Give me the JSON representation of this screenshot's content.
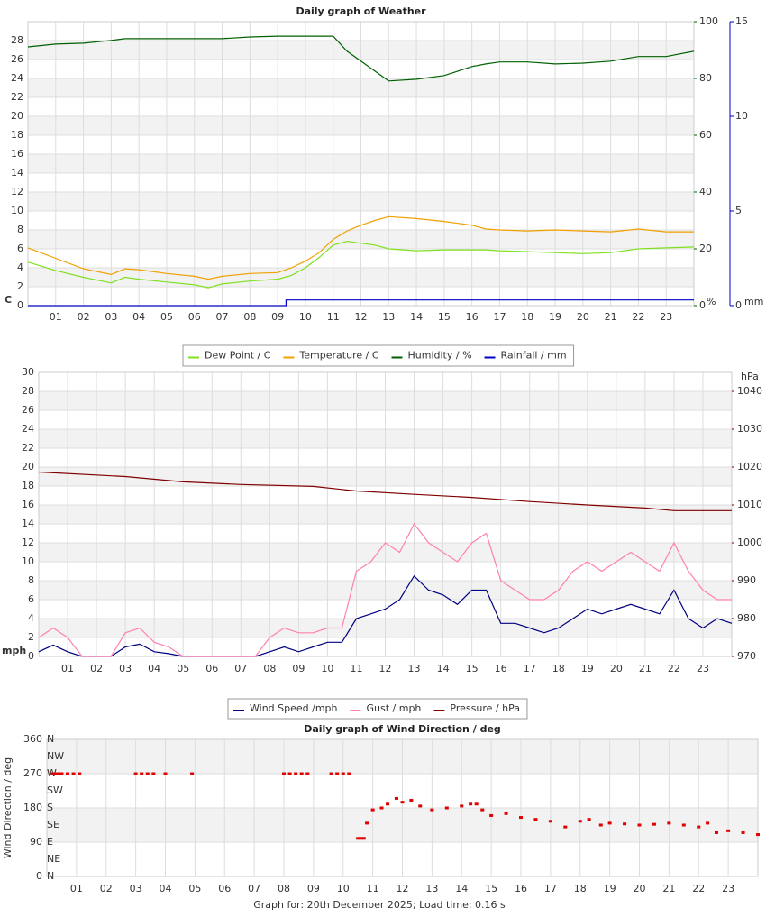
{
  "chart_data": [
    {
      "type": "line",
      "title": "Daily graph of Weather",
      "x": [
        0,
        1,
        2,
        3,
        3.5,
        4,
        5,
        6,
        6.5,
        7,
        8,
        9,
        9.5,
        10,
        10.5,
        11,
        11.5,
        12,
        12.5,
        13,
        14,
        15,
        16,
        16.5,
        17,
        18,
        19,
        20,
        21,
        22,
        23,
        24
      ],
      "xlim": [
        0,
        24
      ],
      "xticks": [
        {
          "value": 1,
          "label": "01"
        },
        {
          "value": 2,
          "label": "02"
        },
        {
          "value": 3,
          "label": "03"
        },
        {
          "value": 4,
          "label": "04"
        },
        {
          "value": 5,
          "label": "05"
        },
        {
          "value": 6,
          "label": "06"
        },
        {
          "value": 7,
          "label": "07"
        },
        {
          "value": 8,
          "label": "08"
        },
        {
          "value": 9,
          "label": "09"
        },
        {
          "value": 10,
          "label": "10"
        },
        {
          "value": 11,
          "label": "11"
        },
        {
          "value": 12,
          "label": "12"
        },
        {
          "value": 13,
          "label": "13"
        },
        {
          "value": 14,
          "label": "14"
        },
        {
          "value": 15,
          "label": "15"
        },
        {
          "value": 16,
          "label": "16"
        },
        {
          "value": 17,
          "label": "17"
        },
        {
          "value": 18,
          "label": "18"
        },
        {
          "value": 19,
          "label": "19"
        },
        {
          "value": 20,
          "label": "20"
        },
        {
          "value": 21,
          "label": "21"
        },
        {
          "value": 22,
          "label": "22"
        },
        {
          "value": 23,
          "label": "23"
        }
      ],
      "ylim": [
        0,
        30
      ],
      "yticks": [
        0,
        2,
        4,
        6,
        8,
        10,
        12,
        14,
        16,
        18,
        20,
        22,
        24,
        26,
        28
      ],
      "y_label": "C",
      "y_color": "#e8a000",
      "y2lim": [
        0,
        100
      ],
      "y2ticks": [
        0,
        20,
        40,
        60,
        80,
        100
      ],
      "y2_label": "%",
      "y2_color": "#006000",
      "y3lim": [
        0,
        15
      ],
      "y3ticks": [
        0,
        5,
        10,
        15
      ],
      "y3_label": "mm",
      "y3_color": "#0000c0",
      "grid": true,
      "series": [
        {
          "name": "Dew Point / C",
          "color": "#80e020",
          "values": [
            4.6,
            3.7,
            3.0,
            2.4,
            3.0,
            2.8,
            2.5,
            2.2,
            1.9,
            2.3,
            2.6,
            2.8,
            3.2,
            4.0,
            5.1,
            6.4,
            6.8,
            6.6,
            6.4,
            6.0,
            5.8,
            5.9,
            5.9,
            5.9,
            5.8,
            5.7,
            5.6,
            5.5,
            5.6,
            6.0,
            6.1,
            6.2
          ]
        },
        {
          "name": "Temperature / C",
          "color": "#f0a000",
          "values": [
            6.1,
            5.0,
            3.9,
            3.3,
            3.9,
            3.8,
            3.4,
            3.1,
            2.8,
            3.1,
            3.4,
            3.5,
            4.0,
            4.7,
            5.6,
            7.0,
            7.9,
            8.5,
            9.0,
            9.4,
            9.2,
            8.9,
            8.5,
            8.1,
            8.0,
            7.9,
            8.0,
            7.9,
            7.8,
            8.1,
            7.8,
            7.8
          ]
        },
        {
          "name": "Humidity / %",
          "color": "#006000",
          "axis": "y2",
          "values": [
            91.1,
            92.1,
            92.4,
            93.4,
            94,
            94,
            94,
            94,
            94,
            94,
            94.6,
            94.9,
            94.9,
            94.9,
            94.9,
            94.9,
            89.6,
            86.1,
            82.6,
            79.1,
            79.7,
            81,
            84.2,
            85.1,
            85.8,
            85.8,
            85.1,
            85.4,
            86.1,
            87.7,
            87.7,
            89.6
          ]
        },
        {
          "name": "Rainfall / mm",
          "color": "#0000c0",
          "axis": "y3",
          "x": [
            0,
            9.3,
            9.3,
            24
          ],
          "values": [
            0,
            0,
            0.3,
            0.3
          ]
        }
      ]
    },
    {
      "type": "line",
      "x": [
        0,
        0.5,
        1,
        1.5,
        2,
        2.5,
        3,
        3.5,
        4,
        4.5,
        5,
        5.5,
        6,
        6.5,
        7,
        7.5,
        8,
        8.5,
        9,
        9.5,
        10,
        10.5,
        11,
        11.5,
        12,
        12.5,
        13,
        13.5,
        14,
        14.5,
        15,
        15.5,
        16,
        16.5,
        17,
        17.5,
        18,
        18.5,
        19,
        19.5,
        20,
        20.5,
        21,
        21.5,
        22,
        22.5,
        23,
        23.5,
        24
      ],
      "xlim": [
        0,
        24
      ],
      "xticks": [
        {
          "value": 1,
          "label": "01"
        },
        {
          "value": 2,
          "label": "02"
        },
        {
          "value": 3,
          "label": "03"
        },
        {
          "value": 4,
          "label": "04"
        },
        {
          "value": 5,
          "label": "05"
        },
        {
          "value": 6,
          "label": "06"
        },
        {
          "value": 7,
          "label": "07"
        },
        {
          "value": 8,
          "label": "08"
        },
        {
          "value": 9,
          "label": "09"
        },
        {
          "value": 10,
          "label": "10"
        },
        {
          "value": 11,
          "label": "11"
        },
        {
          "value": 12,
          "label": "12"
        },
        {
          "value": 13,
          "label": "13"
        },
        {
          "value": 14,
          "label": "14"
        },
        {
          "value": 15,
          "label": "15"
        },
        {
          "value": 16,
          "label": "16"
        },
        {
          "value": 17,
          "label": "17"
        },
        {
          "value": 18,
          "label": "18"
        },
        {
          "value": 19,
          "label": "19"
        },
        {
          "value": 20,
          "label": "20"
        },
        {
          "value": 21,
          "label": "21"
        },
        {
          "value": 22,
          "label": "22"
        },
        {
          "value": 23,
          "label": "23"
        }
      ],
      "ylim": [
        0,
        30
      ],
      "yticks": [
        0,
        2,
        4,
        6,
        8,
        10,
        12,
        14,
        16,
        18,
        20,
        22,
        24,
        26,
        28,
        30
      ],
      "y_label": "mph",
      "y_color": "#000080",
      "y2lim": [
        970,
        1045
      ],
      "y2ticks": [
        970,
        980,
        990,
        1000,
        1010,
        1020,
        1030,
        1040
      ],
      "y2_label": "hPa",
      "y2_color": "#800000",
      "grid": true,
      "series": [
        {
          "name": "Wind Speed /mph",
          "color": "#000080",
          "values": [
            0.5,
            1.2,
            0.5,
            0,
            0,
            0,
            1,
            1.3,
            0.5,
            0.3,
            0,
            0,
            0,
            0,
            0,
            0,
            0.5,
            1,
            0.5,
            1,
            1.5,
            1.5,
            4,
            4.5,
            5,
            6,
            8.5,
            7,
            6.5,
            5.5,
            7,
            7,
            3.5,
            3.5,
            3,
            2.5,
            3,
            4,
            5,
            4.5,
            5,
            5.5,
            5,
            4.5,
            7,
            4,
            3,
            4,
            3.5
          ]
        },
        {
          "name": "Gust / mph",
          "color": "#ff80b0",
          "values": [
            2,
            3,
            2,
            0,
            0,
            0,
            2.5,
            3,
            1.5,
            1,
            0,
            0,
            0,
            0,
            0,
            0,
            2,
            3,
            2.5,
            2.5,
            3,
            3,
            9,
            10,
            12,
            11,
            14,
            12,
            11,
            10,
            12,
            13,
            8,
            7,
            6,
            6,
            7,
            9,
            10,
            9,
            10,
            11,
            10,
            9,
            12,
            9,
            7,
            6,
            6
          ]
        },
        {
          "name": "Pressure / hPa",
          "color": "#800000",
          "axis": "y2",
          "x": [
            0,
            3,
            5,
            7,
            9.5,
            11,
            13,
            15,
            17,
            19,
            21,
            22,
            24
          ],
          "values": [
            1018.7,
            1017.5,
            1016.1,
            1015.4,
            1014.9,
            1013.7,
            1012.8,
            1012.0,
            1010.9,
            1010.0,
            1009.2,
            1008.5,
            1008.5
          ]
        }
      ]
    },
    {
      "type": "scatter",
      "title": "Daily graph of Wind Direction / deg",
      "x": [
        0.2,
        0.3,
        0.4,
        0.5,
        0.7,
        0.9,
        1.1,
        3.0,
        3.2,
        3.4,
        3.6,
        4.0,
        4.9,
        8.0,
        8.2,
        8.4,
        8.6,
        8.8,
        9.6,
        9.8,
        10.0,
        10.2,
        10.5,
        10.6,
        10.7,
        10.8,
        11,
        11.3,
        11.5,
        11.8,
        12,
        12.3,
        12.6,
        13,
        13.5,
        14,
        14.3,
        14.5,
        14.7,
        15,
        15.5,
        16,
        16.5,
        17,
        17.5,
        18,
        18.3,
        18.7,
        19,
        19.5,
        20,
        20.5,
        21,
        21.5,
        22,
        22.3,
        22.6,
        23,
        23.5,
        24
      ],
      "values": [
        270,
        270,
        270,
        270,
        270,
        270,
        270,
        270,
        270,
        270,
        270,
        270,
        270,
        270,
        270,
        270,
        270,
        270,
        270,
        270,
        270,
        270,
        100,
        100,
        100,
        140,
        175,
        180,
        190,
        205,
        195,
        200,
        185,
        175,
        180,
        185,
        190,
        190,
        175,
        160,
        165,
        155,
        150,
        145,
        130,
        145,
        150,
        135,
        140,
        138,
        135,
        137,
        140,
        135,
        130,
        140,
        115,
        120,
        115,
        110
      ],
      "color": "#e00000",
      "xlim": [
        0,
        24
      ],
      "xticks": [
        {
          "value": 1,
          "label": "01"
        },
        {
          "value": 2,
          "label": "02"
        },
        {
          "value": 3,
          "label": "03"
        },
        {
          "value": 4,
          "label": "04"
        },
        {
          "value": 5,
          "label": "05"
        },
        {
          "value": 6,
          "label": "06"
        },
        {
          "value": 7,
          "label": "07"
        },
        {
          "value": 8,
          "label": "08"
        },
        {
          "value": 9,
          "label": "09"
        },
        {
          "value": 10,
          "label": "10"
        },
        {
          "value": 11,
          "label": "11"
        },
        {
          "value": 12,
          "label": "12"
        },
        {
          "value": 13,
          "label": "13"
        },
        {
          "value": 14,
          "label": "14"
        },
        {
          "value": 15,
          "label": "15"
        },
        {
          "value": 16,
          "label": "16"
        },
        {
          "value": 17,
          "label": "17"
        },
        {
          "value": 18,
          "label": "18"
        },
        {
          "value": 19,
          "label": "19"
        },
        {
          "value": 20,
          "label": "20"
        },
        {
          "value": 21,
          "label": "21"
        },
        {
          "value": 22,
          "label": "22"
        },
        {
          "value": 23,
          "label": "23"
        }
      ],
      "ylim": [
        0,
        360
      ],
      "yticks": [
        0,
        90,
        180,
        270,
        360
      ],
      "y_label": "Wind Direction / deg",
      "y_color": "#e00000",
      "compass_ticks": [
        {
          "value": 0,
          "label": "N"
        },
        {
          "value": 45,
          "label": "NE"
        },
        {
          "value": 90,
          "label": "E"
        },
        {
          "value": 135,
          "label": "SE"
        },
        {
          "value": 180,
          "label": "S"
        },
        {
          "value": 225,
          "label": "SW"
        },
        {
          "value": 270,
          "label": "W"
        },
        {
          "value": 315,
          "label": "NW"
        },
        {
          "value": 360,
          "label": "N"
        }
      ],
      "grid": true
    }
  ],
  "footer": "Graph for: 20th December 2025; Load time: 0.16 s"
}
